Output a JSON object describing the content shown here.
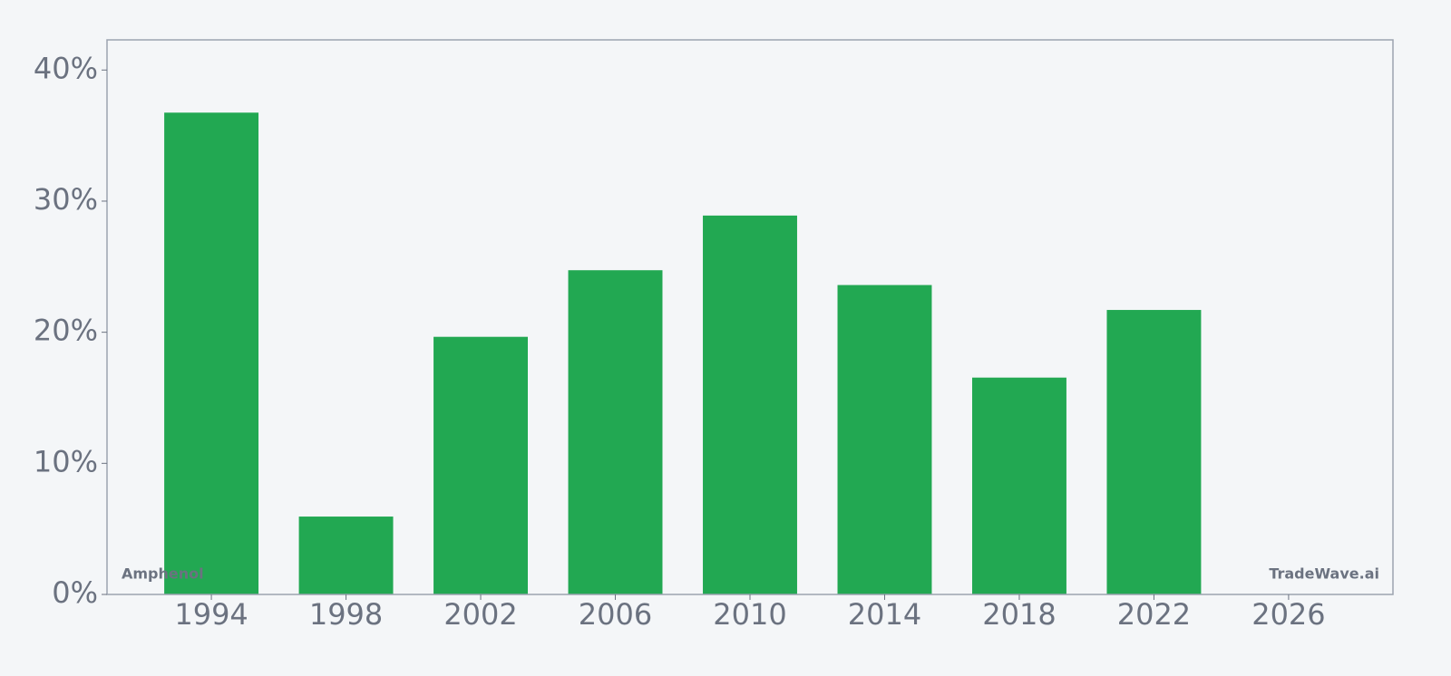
{
  "chart_data": {
    "type": "bar",
    "x": [
      1994,
      1998,
      2002,
      2006,
      2010,
      2014,
      2018,
      2022
    ],
    "values": [
      36.75,
      5.94,
      19.65,
      24.73,
      28.9,
      23.6,
      16.54,
      21.7
    ],
    "color": "#22a852",
    "xlim": [
      1990.9,
      2029.1
    ],
    "xticks": [
      1994,
      1998,
      2002,
      2006,
      2010,
      2014,
      2018,
      2022,
      2026
    ],
    "ylim": [
      0,
      42.3
    ],
    "yticks": [
      {
        "value": 0,
        "label": "0%"
      },
      {
        "value": 10,
        "label": "10%"
      },
      {
        "value": 20,
        "label": "20%"
      },
      {
        "value": 30,
        "label": "30%"
      },
      {
        "value": 40,
        "label": "40%"
      }
    ],
    "grid": false,
    "annotations": [
      "Amphenol",
      "TradeWave.ai"
    ]
  }
}
